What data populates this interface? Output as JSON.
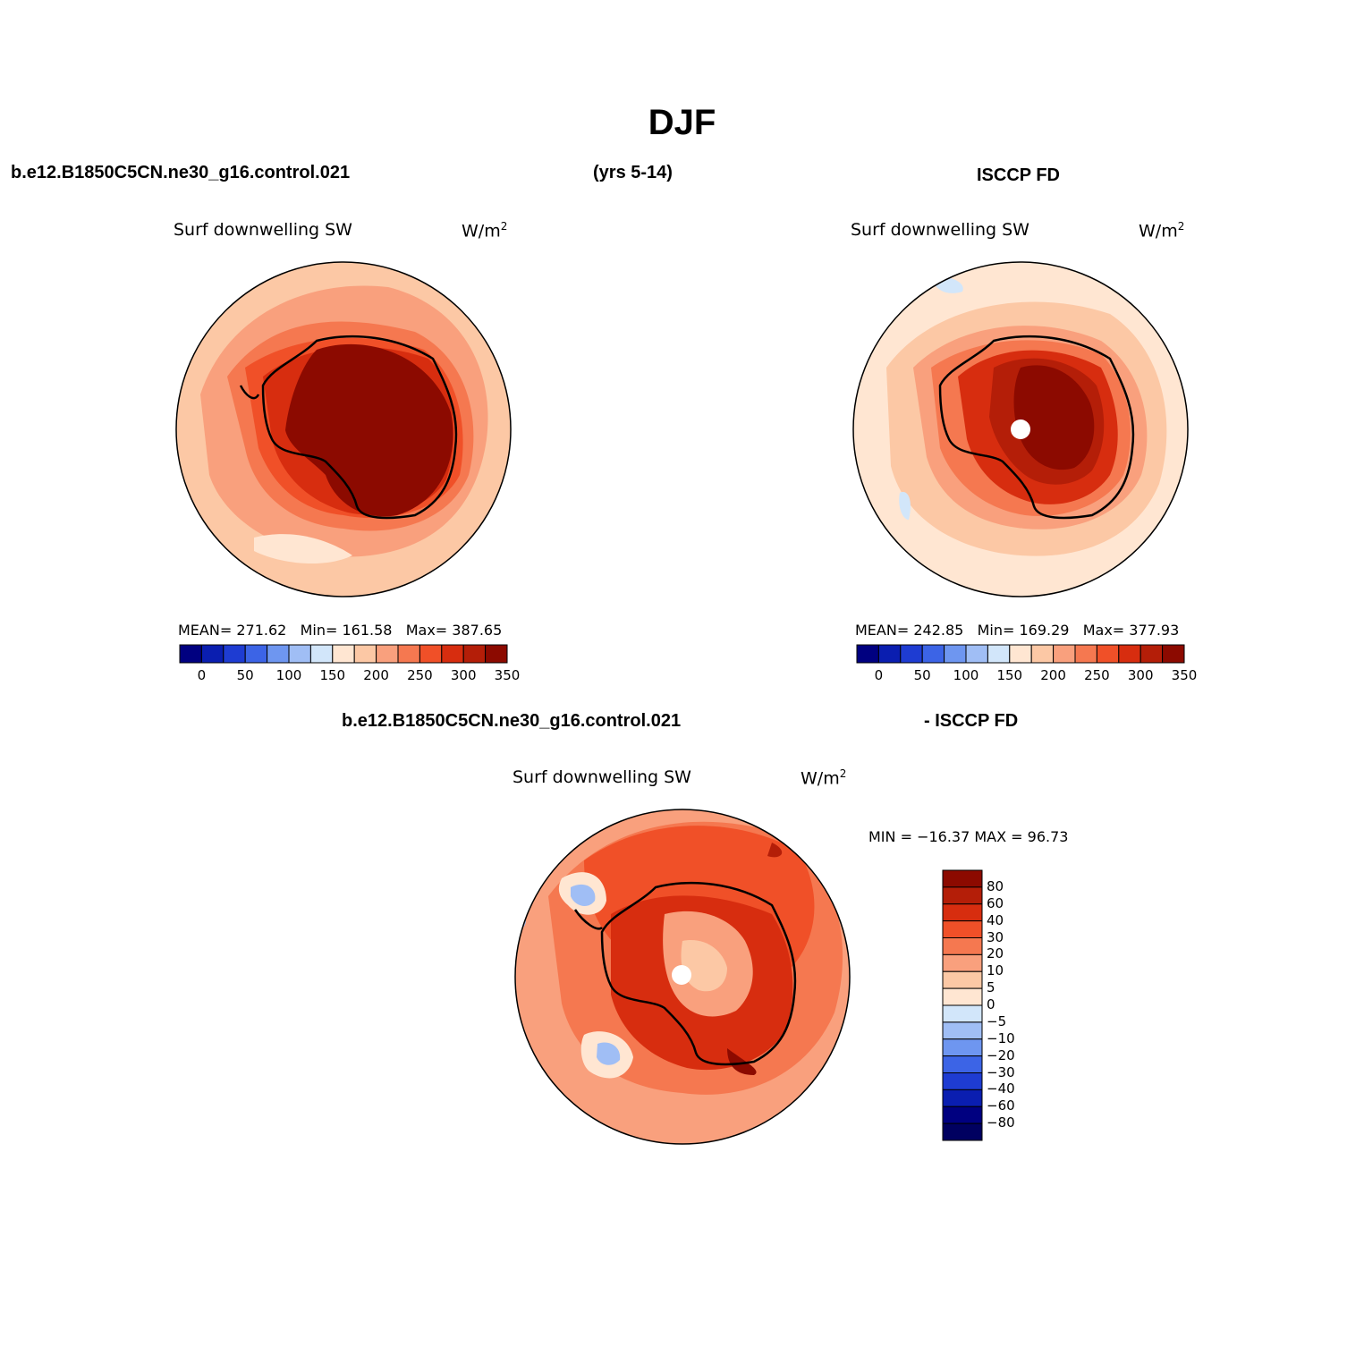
{
  "title": "DJF",
  "top_left_header": "b.e12.B1850C5CN.ne30_g16.control.021",
  "top_center_header": "(yrs 5-14)",
  "top_right_header": "ISCCP FD",
  "panels": [
    {
      "id": "model",
      "variable": "Surf downwelling SW",
      "units": "W/m",
      "units_sup": "2",
      "stats": {
        "mean_label": "MEAN=",
        "mean": "271.62",
        "min_label": "Min=",
        "min": "161.58",
        "max_label": "Max=",
        "max": "387.65"
      }
    },
    {
      "id": "obs",
      "variable": "Surf downwelling SW",
      "units": "W/m",
      "units_sup": "2",
      "stats": {
        "mean_label": "MEAN=",
        "mean": "242.85",
        "min_label": "Min=",
        "min": "169.29",
        "max_label": "Max=",
        "max": "377.93"
      }
    }
  ],
  "abs_colorbar": {
    "colors": [
      "#000080",
      "#0a1eb0",
      "#1e3cd2",
      "#3c64e6",
      "#6e96f0",
      "#a0bef5",
      "#d2e6fa",
      "#ffe6d2",
      "#fcc8a5",
      "#f9a07d",
      "#f57850",
      "#f05028",
      "#d72d0f",
      "#b41e08",
      "#8c0a00"
    ],
    "ticks": [
      "0",
      "50",
      "100",
      "150",
      "200",
      "250",
      "300",
      "350"
    ]
  },
  "diff": {
    "header_left": "b.e12.B1850C5CN.ne30_g16.control.021",
    "header_right": "- ISCCP FD",
    "variable": "Surf downwelling SW",
    "units": "W/m",
    "units_sup": "2",
    "minmax": "MIN = −16.37 MAX =  96.73",
    "colorbar": {
      "colors": [
        "#8c0a00",
        "#b41e08",
        "#d72d0f",
        "#f05028",
        "#f57850",
        "#f9a07d",
        "#fcc8a5",
        "#ffe6d2",
        "#d2e6fa",
        "#a0bef5",
        "#6e96f0",
        "#3c64e6",
        "#1e3cd2",
        "#0a1eb0",
        "#000080",
        "#000060"
      ],
      "ticks": [
        "80",
        "60",
        "40",
        "30",
        "20",
        "10",
        "5",
        "0",
        "−5",
        "−10",
        "−20",
        "−30",
        "−40",
        "−60",
        "−80"
      ]
    }
  }
}
